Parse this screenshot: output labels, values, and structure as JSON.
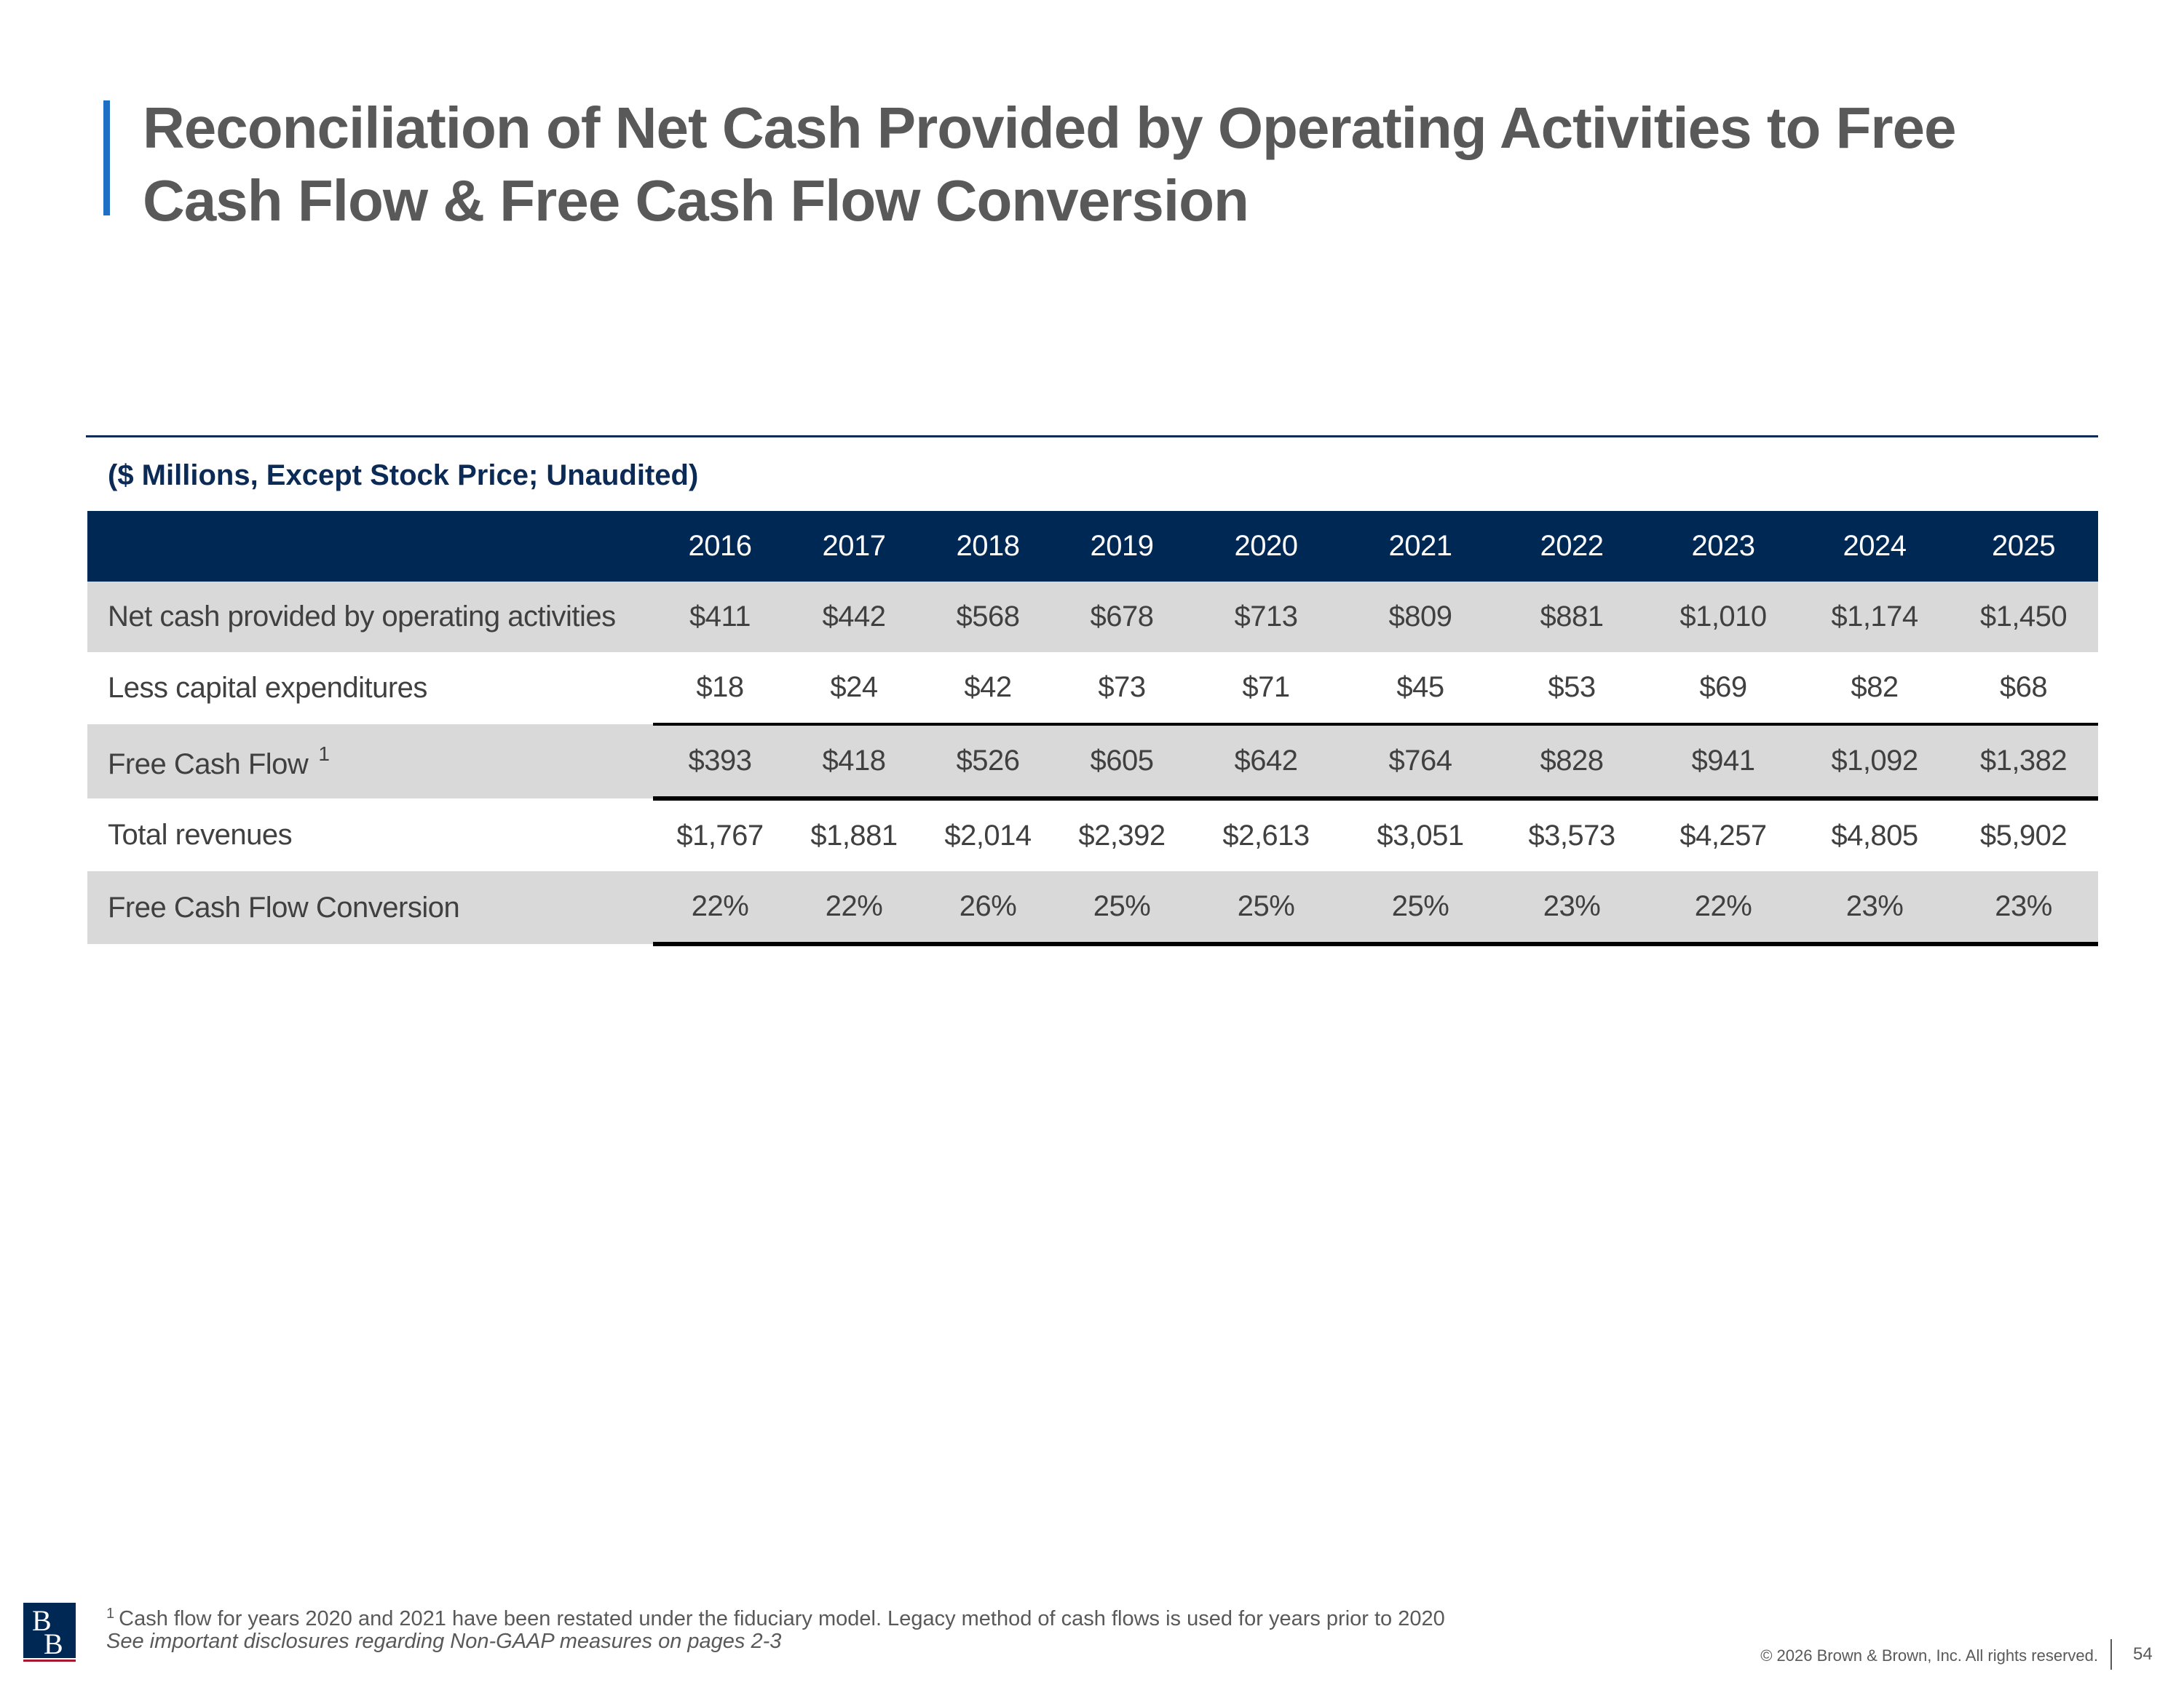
{
  "slide": {
    "title": "Reconciliation of Net Cash Provided by Operating Activities to Free Cash Flow & Free Cash Flow Conversion",
    "units_note": "($ Millions, Except Stock Price; Unaudited)",
    "page_number": "54",
    "copyright": "© 2026 Brown & Brown, Inc. All rights reserved.",
    "footnote_marker": "1",
    "footnote_text": "Cash flow for years 2020 and 2021 have been restated under the fiduciary model. Legacy method of cash flows is used for years prior to 2020",
    "disclosure_text": "See important disclosures regarding Non-GAAP measures on pages 2-3",
    "logo": {
      "letters": [
        "B",
        "B"
      ],
      "color": "#002855",
      "accent": "#a6192e"
    }
  },
  "table": {
    "years": [
      "2016",
      "2017",
      "2018",
      "2019",
      "2020",
      "2021",
      "2022",
      "2023",
      "2024",
      "2025"
    ],
    "rows": [
      {
        "label": "Net cash provided by operating activities",
        "values": [
          "$411",
          "$442",
          "$568",
          "$678",
          "$713",
          "$809",
          "$881",
          "$1,010",
          "$1,174",
          "$1,450"
        ]
      },
      {
        "label": "Less capital expenditures",
        "values": [
          "$18",
          "$24",
          "$42",
          "$73",
          "$71",
          "$45",
          "$53",
          "$69",
          "$82",
          "$68"
        ]
      },
      {
        "label": "Free Cash Flow",
        "footnote": "1",
        "values": [
          "$393",
          "$418",
          "$526",
          "$605",
          "$642",
          "$764",
          "$828",
          "$941",
          "$1,092",
          "$1,382"
        ]
      },
      {
        "label": "Total revenues",
        "values": [
          "$1,767",
          "$1,881",
          "$2,014",
          "$2,392",
          "$2,613",
          "$3,051",
          "$3,573",
          "$4,257",
          "$4,805",
          "$5,902"
        ]
      },
      {
        "label": "Free Cash Flow Conversion",
        "values": [
          "22%",
          "22%",
          "26%",
          "25%",
          "25%",
          "25%",
          "23%",
          "22%",
          "23%",
          "23%"
        ]
      }
    ]
  },
  "colors": {
    "accent_blue": "#1f6fc5",
    "header_navy": "#002855",
    "row_shade": "#d9d9d9",
    "title_gray": "#595959"
  }
}
